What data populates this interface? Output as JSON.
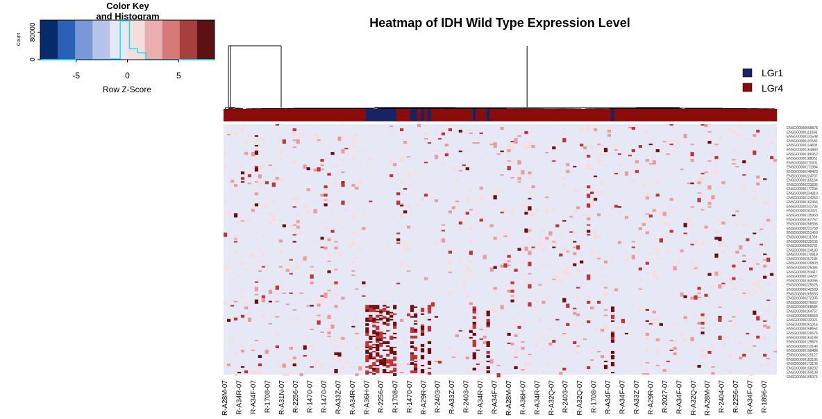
{
  "chart_data": {
    "type": "heatmap",
    "title": "Heatmap of IDH Wild Type Expression Level",
    "color_key": {
      "title_line1": "Color Key",
      "title_line2": "and Histogram",
      "xlabel": "Row Z-Score",
      "ylabel": "Count",
      "xticks": [
        "-5",
        "0",
        "5"
      ],
      "xtick_values": [
        -5,
        0,
        5
      ],
      "yticks": [
        "0",
        "80000"
      ],
      "ytick_values": [
        0,
        80000
      ],
      "xrange": [
        -8.5,
        8.5
      ],
      "yrange": [
        0,
        115000
      ],
      "bins": [
        -8.5,
        -6.2,
        -3.9,
        -1.6,
        0.7,
        3.0,
        5.3,
        7.6,
        8.5
      ],
      "histogram_line": [
        [
          -8.5,
          0
        ],
        [
          -1.6,
          0
        ],
        [
          -1.6,
          2000
        ],
        [
          -0.7,
          2000
        ],
        [
          -0.7,
          113000
        ],
        [
          0.2,
          113000
        ],
        [
          0.2,
          32000
        ],
        [
          1.0,
          32000
        ],
        [
          1.0,
          20000
        ],
        [
          1.8,
          20000
        ],
        [
          1.8,
          0
        ],
        [
          8.5,
          0
        ]
      ],
      "colors": [
        "#062a6b",
        "#2c5fb6",
        "#7a97d8",
        "#b8c3e9",
        "#e7e8f6",
        "#f6dede",
        "#ebaeae",
        "#d67979",
        "#a73f3f",
        "#5c1212"
      ]
    },
    "legend": {
      "position": "top-right",
      "entries": [
        {
          "label": "LGr1",
          "color": "#1a2266"
        },
        {
          "label": "LGr4",
          "color": "#8b0a0a"
        }
      ]
    },
    "sample_bar_groups": [
      {
        "group": "LGr4",
        "from": 0,
        "to": 41
      },
      {
        "group": "LGr1",
        "from": 41,
        "to": 50
      },
      {
        "group": "LGr4",
        "from": 50,
        "to": 54
      },
      {
        "group": "LGr1",
        "from": 54,
        "to": 56
      },
      {
        "group": "LGr4",
        "from": 56,
        "to": 57
      },
      {
        "group": "LGr1",
        "from": 57,
        "to": 58
      },
      {
        "group": "LGr4",
        "from": 58,
        "to": 59
      },
      {
        "group": "LGr1",
        "from": 59,
        "to": 60
      },
      {
        "group": "LGr4",
        "from": 60,
        "to": 72
      },
      {
        "group": "LGr1",
        "from": 72,
        "to": 73
      },
      {
        "group": "LGr4",
        "from": 73,
        "to": 76
      },
      {
        "group": "LGr1",
        "from": 76,
        "to": 77
      },
      {
        "group": "LGr4",
        "from": 77,
        "to": 112
      },
      {
        "group": "LGr1",
        "from": 112,
        "to": 113
      },
      {
        "group": "LGr4",
        "from": 113,
        "to": 160
      }
    ],
    "sample_count": 160,
    "column_labels": [
      "R-A28M-07",
      "R-A34R-07",
      "R-A34F-07",
      "R-1708-07",
      "R-A31N-07",
      "R-2256-07",
      "R-1470-07",
      "R-1470-07",
      "R-A33Z-07",
      "R-A34R-07",
      "R-A36H-07",
      "R-2256-07",
      "R-1708-07",
      "R-1470-07",
      "R-A29R-07",
      "R-2403-07",
      "R-A33Z-07",
      "R-2403-07",
      "R-A34R-07",
      "R-A34F-07",
      "R-A28M-07",
      "R-A36H-07",
      "R-A34R-07",
      "R-A32Q-07",
      "R-2403-07",
      "R-A32Q-07",
      "R-1708-07",
      "R-A34F-07",
      "R-A34F-07",
      "R-A33Z-07",
      "R-A29R-07",
      "R-2027-07",
      "R-A34F-07",
      "R-A32Q-07",
      "R-A28M-07",
      "R-2404-07",
      "R-2256-07",
      "R-A34F-07",
      "R-1896-07"
    ],
    "row_labels": [
      "ENSG00000068878",
      "ENSG00000111058",
      "ENSG00000131548",
      "ENSG00000116580",
      "ENSG00000114805",
      "ENSG00000164880",
      "ENSG00000186952",
      "ENSG00000188051",
      "ENSG00000270001",
      "ENSG00000171984",
      "ENSG00000248429",
      "ENSG00000224707",
      "ENSG00000165164",
      "ENSG00000233636",
      "ENSG00000177294",
      "ENSG00000234810",
      "ENSG00000124253",
      "ENSG00000162456",
      "ENSG00000241736",
      "ENSG00000263321",
      "ENSG00000135960",
      "ENSG00000167757",
      "ENSG00000256588",
      "ENSG00000231758",
      "ENSG00000251459",
      "ENSG00000211938",
      "ENSG00000235536",
      "ENSG00000250761",
      "ENSG00000124180",
      "ENSG00000170818",
      "ENSG00000267184",
      "ENSG00000226803",
      "ENSG00000225084",
      "ENSG00000253417",
      "ENSG00000124237",
      "ENSG00000163096",
      "ENSG00000225626",
      "ENSG00000242589",
      "ENSG00000265653",
      "ENSG00000272395",
      "ENSG00000276667",
      "ENSG00000268584",
      "ENSG00000264757",
      "ENSG00000265568",
      "ENSG00000232021",
      "ENSG00000261016",
      "ENSG00000268654",
      "ENSG00000229676",
      "ENSG00000163189",
      "ENSG00000125876",
      "ENSG00000213146",
      "ENSG00000198488",
      "ENSG00000225127",
      "ENSG00000183186",
      "ENSG00000173106",
      "ENSG00000158292",
      "ENSG00000159108",
      "ENSG00000105976"
    ],
    "row_count": 180,
    "matrix_description_values": {
      "background": "#e7e8f6",
      "light": "#f9dcdc",
      "medium": "#ec9a9a",
      "strong": "#c03535",
      "dark": "#6e0f0f"
    }
  }
}
